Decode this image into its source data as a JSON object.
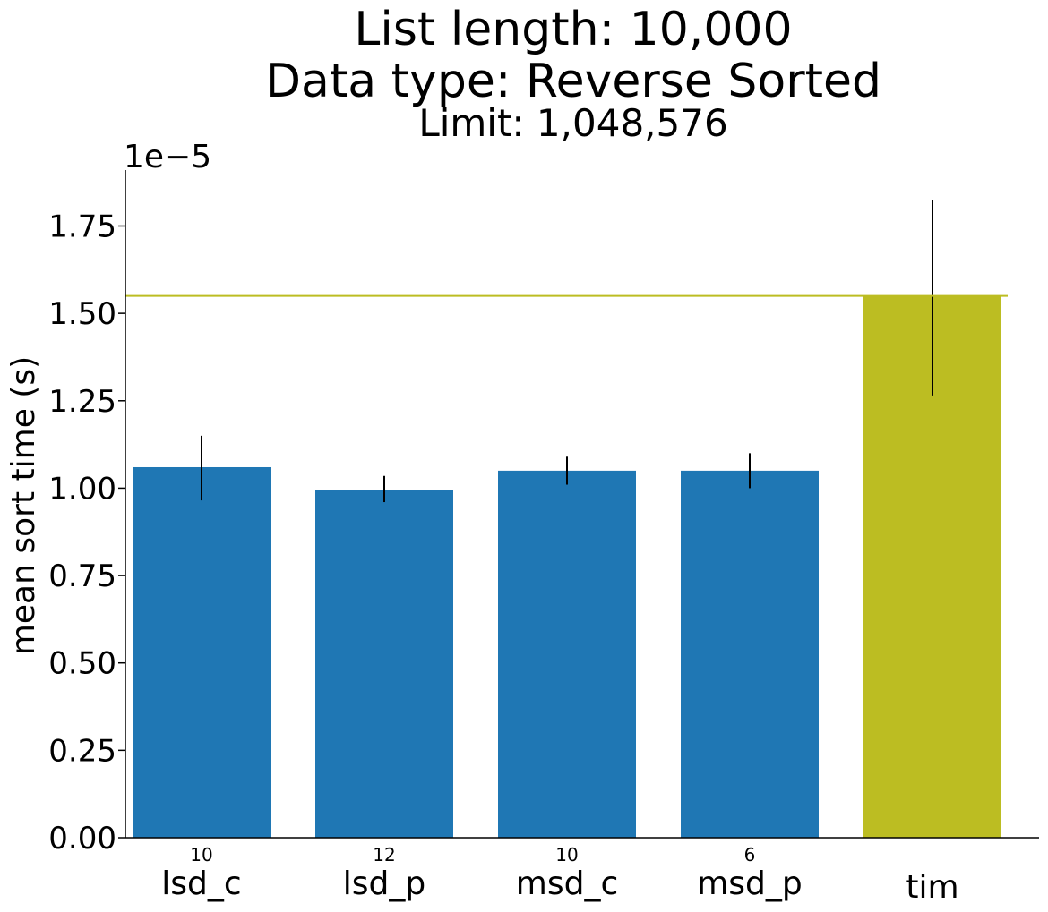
{
  "chart_data": {
    "type": "bar",
    "title_lines": [
      "List length: 10,000",
      "Data type: Reverse Sorted"
    ],
    "subtitle": "Limit: 1,048,576",
    "xlabel": "",
    "ylabel": "mean sort time (s)",
    "y_scale_label": "1e−5",
    "y_scale_factor": 1e-05,
    "ylim": [
      0,
      1.91
    ],
    "y_ticks": [
      0.0,
      0.25,
      0.5,
      0.75,
      1.0,
      1.25,
      1.5,
      1.75
    ],
    "y_tick_labels": [
      "0.00",
      "0.25",
      "0.50",
      "0.75",
      "1.00",
      "1.25",
      "1.50",
      "1.75"
    ],
    "categories": [
      "lsd_c",
      "lsd_p",
      "msd_c",
      "msd_p",
      "tim"
    ],
    "bar_annotations": [
      "10",
      "12",
      "10",
      "6",
      ""
    ],
    "values": [
      1.06,
      0.995,
      1.05,
      1.05,
      1.55
    ],
    "error_low": [
      0.965,
      0.96,
      1.01,
      1.0,
      1.265
    ],
    "error_high": [
      1.15,
      1.035,
      1.09,
      1.1,
      1.825
    ],
    "bar_colors": [
      "#1f77b4",
      "#1f77b4",
      "#1f77b4",
      "#1f77b4",
      "#bcbd22"
    ],
    "reference_line": {
      "value": 1.55,
      "color": "#bcbd22"
    },
    "grid": false,
    "legend": "none"
  }
}
